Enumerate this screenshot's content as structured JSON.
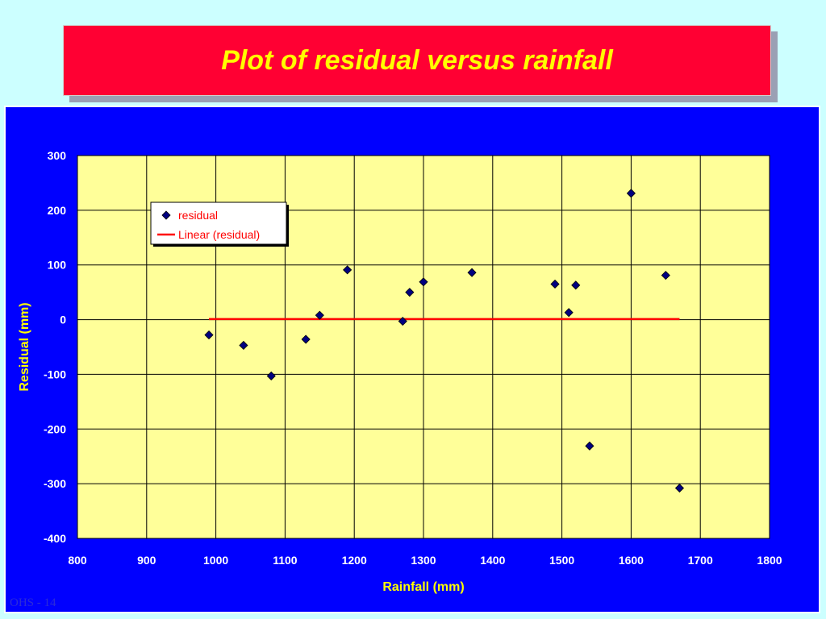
{
  "slide": {
    "title": "Plot of residual versus rainfall",
    "footer": "OHS - 14"
  },
  "colors": {
    "background": "#ccffff",
    "title_box": "#ff0033",
    "title_text": "#ffff00",
    "chart_area": "#0000ff",
    "plot_area": "#ffff99",
    "axis_text": "#ffffff",
    "axis_title": "#ffff00",
    "marker": "#000080",
    "trend_line": "#ff0000"
  },
  "chart_data": {
    "type": "scatter",
    "xlabel": "Rainfall (mm)",
    "ylabel": "Residual (mm)",
    "xlim": [
      800,
      1800
    ],
    "ylim": [
      -400,
      300
    ],
    "xticks": [
      800,
      900,
      1000,
      1100,
      1200,
      1300,
      1400,
      1500,
      1600,
      1700,
      1800
    ],
    "yticks": [
      300,
      200,
      100,
      0,
      -100,
      -200,
      -300,
      -400
    ],
    "grid": true,
    "legend_position": "top-left",
    "series": [
      {
        "name": "residual",
        "marker": "diamond",
        "x": [
          990,
          1040,
          1080,
          1130,
          1150,
          1190,
          1270,
          1280,
          1300,
          1370,
          1490,
          1510,
          1520,
          1540,
          1600,
          1650,
          1670
        ],
        "y": [
          -28,
          -47,
          -103,
          -36,
          8,
          91,
          -3,
          50,
          69,
          86,
          65,
          13,
          63,
          -231,
          231,
          81,
          -308
        ]
      },
      {
        "name": "Linear (residual)",
        "kind": "line",
        "x": [
          990,
          1670
        ],
        "y": [
          1,
          1
        ]
      }
    ]
  }
}
